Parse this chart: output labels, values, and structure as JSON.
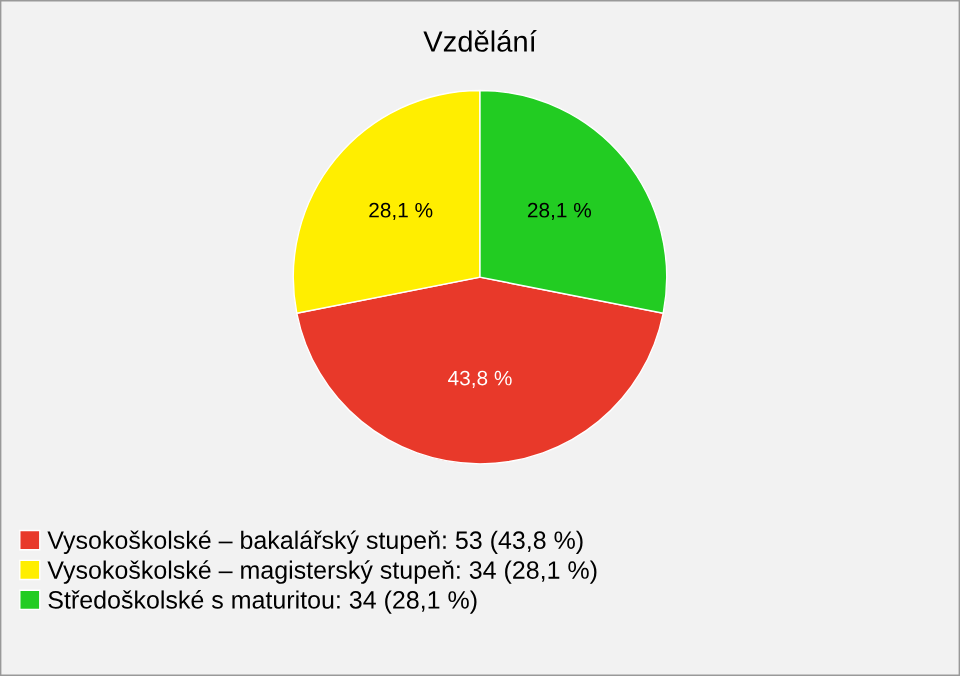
{
  "chart_data": {
    "type": "pie",
    "title": "Vzdělání",
    "categories": [
      "Vysokoškolské – bakalářský stupeň: 53 (43,8 %)",
      "Vysokoškolské – magisterský stupeň: 34 (28,1 %)",
      "Středoškolské s maturitou: 34 (28,1 %)"
    ],
    "values": [
      43.8,
      28.1,
      28.1
    ],
    "value_labels": [
      "43,8 %",
      "28,1 %",
      "28,1 %"
    ],
    "colors": [
      "#e8392a",
      "#ffee00",
      "#22cc22"
    ],
    "legend": "bottom"
  }
}
